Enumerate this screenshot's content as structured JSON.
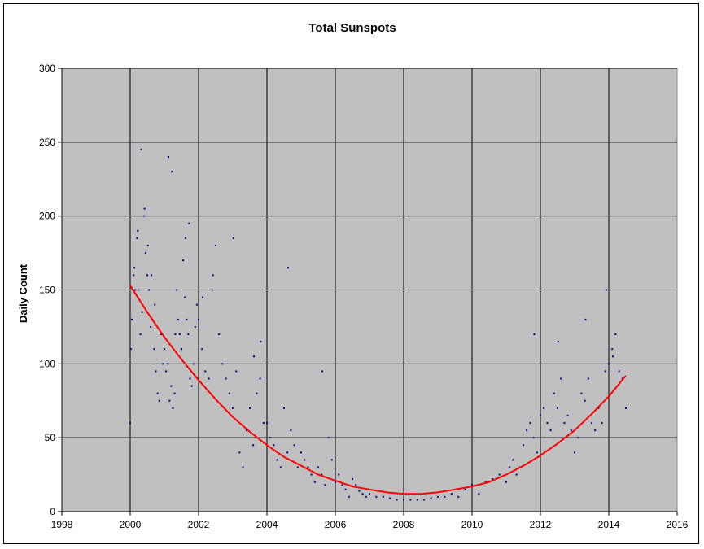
{
  "chart_data": {
    "type": "scatter",
    "title": "Total Sunspots",
    "xlabel": "",
    "ylabel": "Daily Count",
    "xlim": [
      1998,
      2016
    ],
    "ylim": [
      0,
      300
    ],
    "x_ticks": [
      "1998",
      "2000",
      "2002",
      "2004",
      "2006",
      "2008",
      "2010",
      "2012",
      "2014",
      "2016"
    ],
    "y_ticks": [
      "0",
      "50",
      "100",
      "150",
      "200",
      "250",
      "300"
    ],
    "grid": true,
    "plot_background": "#C0C0C0",
    "series": [
      {
        "kind": "scatter",
        "color": "#000080",
        "x": [
          2000.0,
          2000.05,
          2000.1,
          2000.15,
          2000.2,
          2000.25,
          2000.3,
          2000.35,
          2000.4,
          2000.45,
          2000.5,
          2000.55,
          2000.6,
          2000.65,
          2000.7,
          2000.75,
          2000.8,
          2000.85,
          2000.9,
          2000.95,
          2001.0,
          2001.05,
          2001.1,
          2001.15,
          2001.2,
          2001.25,
          2001.3,
          2001.35,
          2001.4,
          2001.45,
          2001.5,
          2001.55,
          2001.6,
          2001.65,
          2001.7,
          2001.75,
          2001.8,
          2001.85,
          2001.9,
          2001.95,
          2002.0,
          2002.1,
          2002.2,
          2002.3,
          2002.4,
          2002.5,
          2002.6,
          2002.7,
          2002.8,
          2002.9,
          2003.0,
          2003.1,
          2003.2,
          2003.3,
          2003.4,
          2003.5,
          2003.6,
          2003.7,
          2003.8,
          2003.9,
          2004.0,
          2004.1,
          2004.2,
          2004.3,
          2004.4,
          2004.5,
          2004.6,
          2004.7,
          2004.8,
          2004.9,
          2005.0,
          2005.1,
          2005.2,
          2005.3,
          2005.4,
          2005.5,
          2005.6,
          2005.7,
          2005.8,
          2005.9,
          2006.0,
          2006.1,
          2006.2,
          2006.3,
          2006.4,
          2006.5,
          2006.6,
          2006.7,
          2006.8,
          2006.9,
          2007.0,
          2007.2,
          2007.4,
          2007.6,
          2007.8,
          2008.0,
          2008.2,
          2008.4,
          2008.6,
          2008.8,
          2009.0,
          2009.2,
          2009.4,
          2009.6,
          2009.8,
          2010.0,
          2010.2,
          2010.4,
          2010.6,
          2010.8,
          2011.0,
          2011.1,
          2011.2,
          2011.3,
          2011.4,
          2011.5,
          2011.6,
          2011.7,
          2011.8,
          2011.9,
          2012.0,
          2012.1,
          2012.2,
          2012.3,
          2012.4,
          2012.5,
          2012.6,
          2012.7,
          2012.8,
          2012.9,
          2013.0,
          2013.1,
          2013.2,
          2013.3,
          2013.4,
          2013.5,
          2013.6,
          2013.7,
          2013.8,
          2013.9,
          2014.0,
          2014.1,
          2014.2,
          2014.3,
          2014.4,
          2014.5,
          2000.02,
          2000.12,
          2000.22,
          2000.32,
          2000.42,
          2000.52,
          2000.62,
          2000.72,
          2001.12,
          2001.22,
          2001.32,
          2001.62,
          2001.72,
          2002.12,
          2002.42,
          2003.02,
          2003.62,
          2003.82,
          2004.62,
          2005.62,
          2011.82,
          2012.52,
          2013.32,
          2013.92,
          2014.12
        ],
        "y": [
          60,
          130,
          160,
          150,
          185,
          150,
          120,
          135,
          200,
          175,
          160,
          150,
          125,
          130,
          110,
          95,
          80,
          75,
          120,
          100,
          110,
          95,
          100,
          75,
          85,
          70,
          80,
          150,
          130,
          120,
          110,
          170,
          145,
          130,
          120,
          90,
          85,
          100,
          125,
          140,
          130,
          110,
          95,
          90,
          150,
          180,
          120,
          100,
          90,
          80,
          70,
          95,
          40,
          30,
          55,
          70,
          45,
          80,
          90,
          60,
          60,
          50,
          45,
          35,
          30,
          70,
          40,
          55,
          45,
          30,
          40,
          35,
          30,
          25,
          20,
          30,
          25,
          18,
          50,
          35,
          20,
          25,
          18,
          15,
          10,
          22,
          18,
          14,
          12,
          10,
          12,
          10,
          10,
          9,
          8,
          8,
          8,
          8,
          8,
          9,
          10,
          10,
          12,
          10,
          15,
          18,
          12,
          20,
          22,
          25,
          20,
          30,
          35,
          25,
          30,
          45,
          55,
          60,
          50,
          40,
          65,
          70,
          60,
          55,
          80,
          70,
          90,
          60,
          65,
          55,
          40,
          50,
          80,
          75,
          90,
          60,
          55,
          70,
          60,
          95,
          100,
          110,
          120,
          95,
          90,
          70,
          110,
          165,
          190,
          245,
          205,
          180,
          160,
          140,
          240,
          230,
          120,
          185,
          195,
          145,
          160,
          185,
          105,
          115,
          165,
          95,
          120,
          115,
          130,
          150,
          105
        ],
        "name": ""
      },
      {
        "kind": "fit-curve",
        "color": "#FF0000",
        "x": [
          2000.0,
          2000.5,
          2001.0,
          2001.5,
          2002.0,
          2002.5,
          2003.0,
          2003.5,
          2004.0,
          2004.5,
          2005.0,
          2005.5,
          2006.0,
          2006.5,
          2007.0,
          2007.5,
          2008.0,
          2008.5,
          2009.0,
          2009.5,
          2010.0,
          2010.5,
          2011.0,
          2011.5,
          2012.0,
          2012.5,
          2013.0,
          2013.5,
          2014.0,
          2014.5
        ],
        "y": [
          153,
          135,
          118,
          103,
          89,
          76,
          64,
          54,
          45,
          37,
          31,
          25,
          21,
          17,
          15,
          13,
          12,
          12,
          13,
          15,
          17,
          20,
          25,
          31,
          38,
          46,
          55,
          66,
          78,
          92
        ],
        "name": ""
      }
    ]
  }
}
